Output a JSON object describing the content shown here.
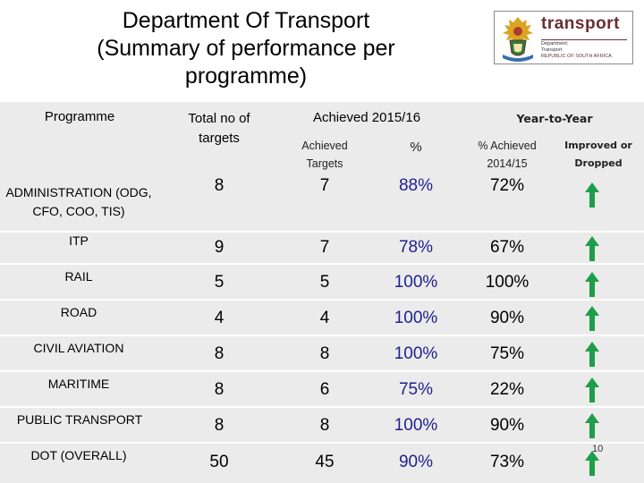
{
  "title": {
    "line1": "Department Of Transport",
    "line2": "(Summary of performance per",
    "line3": "programme)"
  },
  "logo": {
    "wordmark": "transport",
    "line1": "Department:",
    "line2": "Transport",
    "line3": "REPUBLIC OF SOUTH AFRICA",
    "icon": "coat-of-arms-icon"
  },
  "table": {
    "headers": {
      "programme": "Programme",
      "total_targets": "Total no of targets",
      "achieved_group": "Achieved 2015/16",
      "year_to_year": "Year-to-Year"
    },
    "subheaders": {
      "achieved_targets": "Achieved Targets",
      "percent": "%",
      "pct_achieved_prev": "% Achieved 2014/15",
      "improved_dropped": "Improved or Dropped"
    },
    "rows": [
      {
        "programme": "ADMINISTRATION (ODG, CFO, COO, TIS)",
        "total": "8",
        "achieved": "7",
        "pct": "88%",
        "prev": "72%",
        "trend": "improved"
      },
      {
        "programme": "ITP",
        "total": "9",
        "achieved": "7",
        "pct": "78%",
        "prev": "67%",
        "trend": "improved"
      },
      {
        "programme": "RAIL",
        "total": "5",
        "achieved": "5",
        "pct": "100%",
        "prev": "100%",
        "trend": "improved"
      },
      {
        "programme": "ROAD",
        "total": "4",
        "achieved": "4",
        "pct": "100%",
        "prev": "90%",
        "trend": "improved"
      },
      {
        "programme": "CIVIL AVIATION",
        "total": "8",
        "achieved": "8",
        "pct": "100%",
        "prev": "75%",
        "trend": "improved"
      },
      {
        "programme": "MARITIME",
        "total": "8",
        "achieved": "6",
        "pct": "75%",
        "prev": "22%",
        "trend": "improved"
      },
      {
        "programme": "PUBLIC TRANSPORT",
        "total": "8",
        "achieved": "8",
        "pct": "100%",
        "prev": "90%",
        "trend": "improved"
      },
      {
        "programme": "DOT (OVERALL)",
        "total": "50",
        "achieved": "45",
        "pct": "90%",
        "prev": "73%",
        "trend": "improved"
      }
    ],
    "colors": {
      "background": "#ebebeb",
      "percent_text": "#1f1f8f",
      "arrow_green": "#1e9e4a"
    }
  },
  "page_number": "10"
}
